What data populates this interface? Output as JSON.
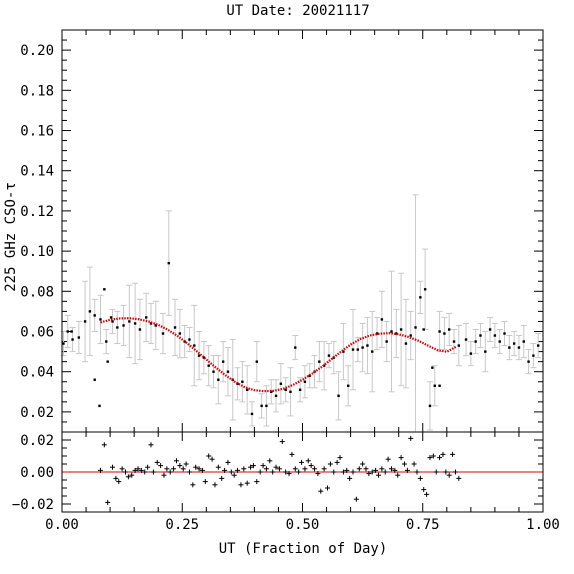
{
  "chart_data": {
    "type": "scatter",
    "title": "UT Date: 20021117",
    "xlabel": "UT (Fraction of Day)",
    "ylabel": "225 GHz CSO-τ",
    "xlim": [
      0.0,
      1.0
    ],
    "xticks": [
      "0.00",
      "0.25",
      "0.50",
      "0.75",
      "1.00"
    ],
    "colors": {
      "data": "#000000",
      "errorbar": "#c8c8c8",
      "fit": "#dd0000",
      "zero_line": "#dd0000"
    },
    "top_panel": {
      "ylim": [
        0.01,
        0.21
      ],
      "yticks": [
        "0.02",
        "0.04",
        "0.06",
        "0.08",
        "0.10",
        "0.12",
        "0.14",
        "0.16",
        "0.18",
        "0.20"
      ],
      "series": [
        {
          "kind": "points_with_errorbars",
          "x": [
            0.003,
            0.012,
            0.022,
            0.035,
            0.048,
            0.058,
            0.068,
            0.08,
            0.092,
            0.105,
            0.115,
            0.128,
            0.14,
            0.152,
            0.162,
            0.175,
            0.185,
            0.195,
            0.21,
            0.222,
            0.235,
            0.245,
            0.255,
            0.265,
            0.275,
            0.285,
            0.295,
            0.305,
            0.315,
            0.325,
            0.335,
            0.345,
            0.355,
            0.365,
            0.375,
            0.385,
            0.395,
            0.405,
            0.415,
            0.425,
            0.435,
            0.445,
            0.455,
            0.465,
            0.475,
            0.485,
            0.495,
            0.505,
            0.515,
            0.525,
            0.535,
            0.545,
            0.555,
            0.565,
            0.575,
            0.585,
            0.595,
            0.605,
            0.615,
            0.625,
            0.635,
            0.645,
            0.655,
            0.665,
            0.675,
            0.685,
            0.695,
            0.705,
            0.715,
            0.725,
            0.735,
            0.745,
            0.755,
            0.765,
            0.775,
            0.785,
            0.795,
            0.805,
            0.815,
            0.825,
            0.84,
            0.85,
            0.86,
            0.87,
            0.88,
            0.89,
            0.9,
            0.91,
            0.92,
            0.93,
            0.94,
            0.95,
            0.96,
            0.97,
            0.98,
            0.99
          ],
          "y": [
            0.054,
            0.06,
            0.056,
            0.057,
            0.065,
            0.07,
            0.068,
            0.066,
            0.055,
            0.065,
            0.062,
            0.063,
            0.065,
            0.064,
            0.061,
            0.067,
            0.064,
            0.063,
            0.059,
            0.094,
            0.062,
            0.059,
            0.055,
            0.056,
            0.053,
            0.048,
            0.047,
            0.043,
            0.04,
            0.036,
            0.045,
            0.04,
            0.036,
            0.034,
            0.035,
            0.031,
            0.019,
            0.045,
            0.023,
            0.023,
            0.03,
            0.028,
            0.034,
            0.031,
            0.03,
            0.052,
            0.031,
            0.035,
            0.038,
            0.04,
            0.045,
            0.043,
            0.048,
            0.047,
            0.028,
            0.05,
            0.033,
            0.051,
            0.051,
            0.052,
            0.053,
            0.05,
            0.059,
            0.066,
            0.055,
            0.06,
            0.059,
            0.061,
            0.054,
            0.058,
            0.062,
            0.077,
            0.081,
            0.023,
            0.033,
            0.06,
            0.059,
            0.061,
            0.055,
            0.053,
            0.056,
            0.049,
            0.055,
            0.058,
            0.05,
            0.061,
            0.058,
            0.055,
            0.059,
            0.052,
            0.054,
            0.052,
            0.055,
            0.045,
            0.048,
            0.053
          ],
          "err": [
            0.006,
            0.008,
            0.006,
            0.008,
            0.02,
            0.022,
            0.008,
            0.012,
            0.006,
            0.006,
            0.008,
            0.01,
            0.018,
            0.02,
            0.015,
            0.012,
            0.01,
            0.012,
            0.01,
            0.026,
            0.014,
            0.012,
            0.008,
            0.006,
            0.02,
            0.012,
            0.008,
            0.01,
            0.008,
            0.012,
            0.01,
            0.012,
            0.02,
            0.008,
            0.01,
            0.012,
            0.006,
            0.01,
            0.006,
            0.01,
            0.006,
            0.008,
            0.01,
            0.006,
            0.012,
            0.006,
            0.006,
            0.008,
            0.006,
            0.008,
            0.01,
            0.012,
            0.006,
            0.008,
            0.012,
            0.014,
            0.01,
            0.02,
            0.006,
            0.012,
            0.014,
            0.02,
            0.008,
            0.014,
            0.01,
            0.03,
            0.012,
            0.028,
            0.022,
            0.012,
            0.066,
            0.008,
            0.02,
            0.012,
            0.01,
            0.01,
            0.008,
            0.008,
            0.006,
            0.01,
            0.008,
            0.006,
            0.006,
            0.006,
            0.01,
            0.006,
            0.006,
            0.006,
            0.006,
            0.006,
            0.006,
            0.006,
            0.008,
            0.006,
            0.006,
            0.006
          ]
        },
        {
          "kind": "points_no_errorbars",
          "x": [
            0.02,
            0.068,
            0.078,
            0.088,
            0.095,
            0.102,
            0.752,
            0.77,
            0.785
          ],
          "y": [
            0.06,
            0.036,
            0.023,
            0.081,
            0.045,
            0.067,
            0.061,
            0.042,
            0.033
          ]
        },
        {
          "kind": "fit_curve",
          "x": [
            0.08,
            0.1,
            0.12,
            0.14,
            0.16,
            0.18,
            0.2,
            0.22,
            0.24,
            0.26,
            0.28,
            0.3,
            0.32,
            0.34,
            0.36,
            0.38,
            0.4,
            0.42,
            0.44,
            0.46,
            0.48,
            0.5,
            0.52,
            0.54,
            0.56,
            0.58,
            0.6,
            0.62,
            0.64,
            0.66,
            0.68,
            0.7,
            0.72,
            0.74,
            0.76,
            0.78,
            0.8,
            0.82
          ],
          "y": [
            0.0645,
            0.0658,
            0.0665,
            0.0666,
            0.0661,
            0.065,
            0.0633,
            0.0609,
            0.0578,
            0.0542,
            0.0502,
            0.0461,
            0.042,
            0.0382,
            0.0349,
            0.0323,
            0.0308,
            0.0303,
            0.0305,
            0.0315,
            0.0334,
            0.036,
            0.039,
            0.0424,
            0.0462,
            0.05,
            0.0535,
            0.0562,
            0.058,
            0.0589,
            0.0592,
            0.0586,
            0.0573,
            0.0555,
            0.0531,
            0.0508,
            0.0499,
            0.0525
          ]
        }
      ]
    },
    "bottom_panel": {
      "ylim": [
        -0.025,
        0.025
      ],
      "yticks": [
        "−0.02",
        "0.00",
        "0.02"
      ],
      "zero_line": 0.0,
      "series": [
        {
          "kind": "residuals",
          "marker": "+",
          "x": [
            0.08,
            0.088,
            0.095,
            0.105,
            0.112,
            0.118,
            0.125,
            0.132,
            0.138,
            0.145,
            0.152,
            0.158,
            0.165,
            0.172,
            0.178,
            0.185,
            0.19,
            0.198,
            0.205,
            0.212,
            0.218,
            0.225,
            0.232,
            0.238,
            0.245,
            0.252,
            0.258,
            0.265,
            0.272,
            0.278,
            0.285,
            0.292,
            0.298,
            0.305,
            0.312,
            0.318,
            0.325,
            0.332,
            0.338,
            0.345,
            0.352,
            0.358,
            0.365,
            0.372,
            0.378,
            0.385,
            0.392,
            0.398,
            0.405,
            0.412,
            0.418,
            0.425,
            0.432,
            0.438,
            0.445,
            0.452,
            0.458,
            0.465,
            0.472,
            0.478,
            0.485,
            0.492,
            0.498,
            0.505,
            0.512,
            0.518,
            0.525,
            0.532,
            0.538,
            0.545,
            0.552,
            0.558,
            0.565,
            0.572,
            0.578,
            0.585,
            0.592,
            0.598,
            0.605,
            0.612,
            0.618,
            0.625,
            0.632,
            0.638,
            0.645,
            0.652,
            0.658,
            0.665,
            0.672,
            0.678,
            0.685,
            0.692,
            0.698,
            0.705,
            0.712,
            0.718,
            0.725,
            0.732,
            0.738,
            0.745,
            0.752,
            0.758,
            0.765,
            0.772,
            0.778,
            0.785,
            0.792,
            0.798,
            0.805,
            0.812,
            0.818,
            0.825
          ],
          "y": [
            0.001,
            0.017,
            -0.019,
            0.003,
            -0.004,
            -0.006,
            0.002,
            0.0,
            -0.003,
            -0.002,
            0.001,
            0.002,
            0.001,
            0.0,
            0.003,
            0.017,
            0.0,
            0.006,
            0.004,
            -0.002,
            0.002,
            0.0,
            0.002,
            0.007,
            0.004,
            0.002,
            0.005,
            0.0,
            -0.008,
            0.003,
            0.002,
            0.001,
            -0.006,
            0.01,
            0.008,
            -0.008,
            0.003,
            -0.004,
            0.001,
            0.006,
            0.0,
            -0.002,
            0.001,
            -0.008,
            0.002,
            -0.007,
            0.003,
            0.004,
            -0.006,
            0.0,
            0.004,
            0.002,
            0.007,
            0.0,
            0.003,
            0.002,
            0.019,
            0.0,
            -0.001,
            0.011,
            0.002,
            0.0,
            0.006,
            0.002,
            0.007,
            0.004,
            0.002,
            -0.001,
            -0.012,
            0.002,
            -0.01,
            0.005,
            0.0,
            0.006,
            0.009,
            0.0,
            0.001,
            -0.004,
            0.0,
            -0.017,
            0.002,
            0.005,
            0.002,
            -0.001,
            0.0,
            0.001,
            -0.002,
            0.002,
            0.0,
            0.008,
            0.002,
            0.001,
            -0.002,
            0.009,
            0.005,
            0.001,
            0.021,
            0.005,
            0.0,
            -0.004,
            -0.011,
            -0.014,
            0.009,
            0.01,
            0.0,
            0.009,
            0.011,
            0.0,
            -0.002,
            0.011,
            0.0,
            -0.004
          ]
        }
      ]
    }
  }
}
